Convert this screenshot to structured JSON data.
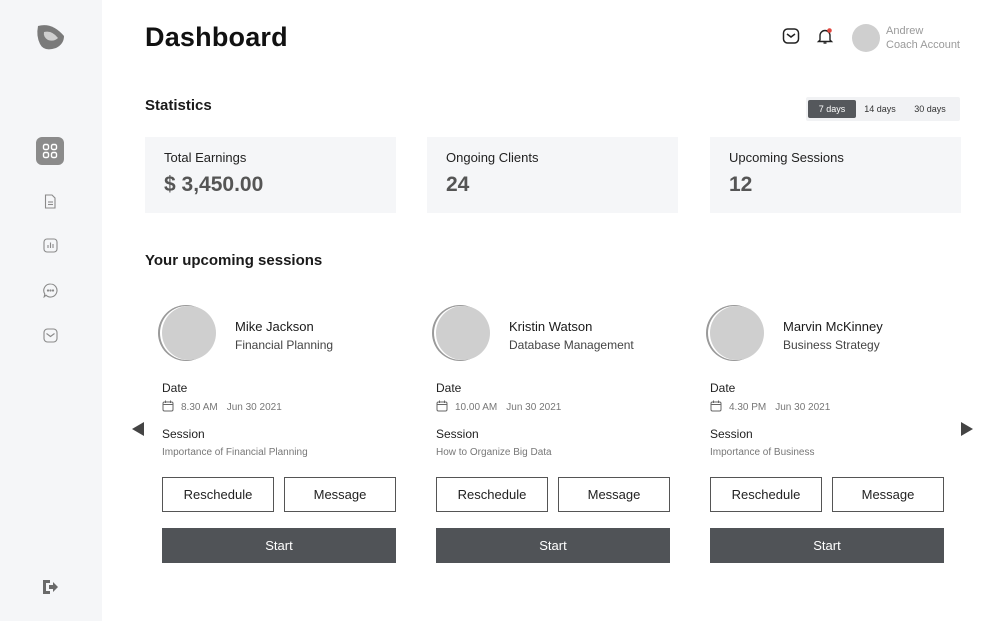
{
  "header": {
    "title": "Dashboard",
    "user_name": "Andrew",
    "user_role": "Coach Account",
    "icons": [
      "mail-icon",
      "bell-icon"
    ],
    "notification_color": "#e0473f"
  },
  "sidebar": {
    "items": [
      {
        "icon": "grid-icon",
        "active": true
      },
      {
        "icon": "document-icon",
        "active": false
      },
      {
        "icon": "chart-icon",
        "active": false
      },
      {
        "icon": "chat-icon",
        "active": false
      },
      {
        "icon": "inbox-icon",
        "active": false
      }
    ],
    "logout_icon": "logout-icon"
  },
  "statistics": {
    "title": "Statistics",
    "ranges": [
      "7 days",
      "14 days",
      "30 days"
    ],
    "selected_range": "7 days",
    "cards": [
      {
        "label": "Total Earnings",
        "value": "$ 3,450.00"
      },
      {
        "label": "Ongoing Clients",
        "value": "24"
      },
      {
        "label": "Upcoming Sessions",
        "value": "12"
      }
    ]
  },
  "sessions": {
    "title": "Your upcoming sessions",
    "date_label": "Date",
    "session_label": "Session",
    "reschedule_label": "Reschedule",
    "message_label": "Message",
    "start_label": "Start",
    "items": [
      {
        "name": "Mike Jackson",
        "topic": "Financial Planning",
        "time": "8.30 AM",
        "date": "Jun 30 2021",
        "session": "Importance of Financial Planning"
      },
      {
        "name": "Kristin Watson",
        "topic": "Database Management",
        "time": "10.00 AM",
        "date": "Jun 30 2021",
        "session": "How to Organize Big Data"
      },
      {
        "name": "Marvin McKinney",
        "topic": "Business Strategy",
        "time": "4.30 PM",
        "date": "Jun 30 2021",
        "session": "Importance of Business"
      }
    ]
  },
  "colors": {
    "accent_dark": "#505357",
    "sidebar_bg": "#f5f6f8",
    "card_bg": "#f5f6f8"
  }
}
